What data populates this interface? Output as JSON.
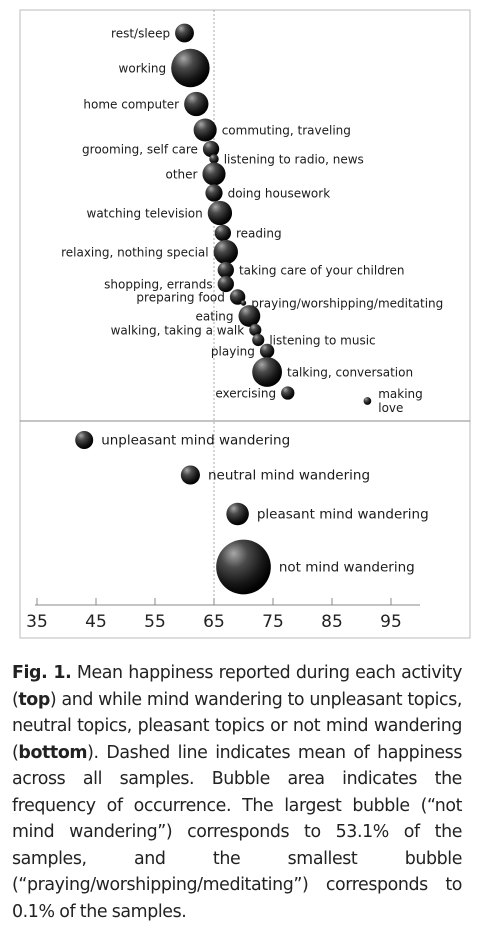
{
  "chart_data": {
    "type": "scatter",
    "subtype": "bubble",
    "xlim": [
      33,
      100
    ],
    "xticks": [
      35,
      45,
      55,
      65,
      75,
      85,
      95
    ],
    "mean_line_x": 65,
    "mean_line_style": "dashed",
    "grid": false,
    "panels": [
      {
        "name": "top",
        "points": [
          {
            "label": "rest/sleep",
            "x": 60,
            "size": 1.2,
            "label_side": "left"
          },
          {
            "label": "working",
            "x": 61,
            "size": 5.0,
            "label_side": "left"
          },
          {
            "label": "home computer",
            "x": 62,
            "size": 2.0,
            "label_side": "left"
          },
          {
            "label": "commuting, traveling",
            "x": 63.5,
            "size": 1.8,
            "label_side": "right"
          },
          {
            "label": "grooming, self care",
            "x": 64.5,
            "size": 0.9,
            "label_side": "left"
          },
          {
            "label": "listening to radio, news",
            "x": 65,
            "size": 0.3,
            "label_side": "right"
          },
          {
            "label": "other",
            "x": 65,
            "size": 1.8,
            "label_side": "left"
          },
          {
            "label": "doing housework",
            "x": 65,
            "size": 1.0,
            "label_side": "right"
          },
          {
            "label": "watching television",
            "x": 66,
            "size": 2.0,
            "label_side": "left"
          },
          {
            "label": "reading",
            "x": 66.5,
            "size": 0.9,
            "label_side": "right"
          },
          {
            "label": "relaxing, nothing special",
            "x": 67,
            "size": 2.0,
            "label_side": "left"
          },
          {
            "label": "taking care of your children",
            "x": 67,
            "size": 0.9,
            "label_side": "right"
          },
          {
            "label": "shopping, errands",
            "x": 67,
            "size": 0.9,
            "label_side": "left"
          },
          {
            "label": "preparing food",
            "x": 69,
            "size": 0.8,
            "label_side": "left"
          },
          {
            "label": "praying/worshipping/meditating",
            "x": 70,
            "size": 0.1,
            "label_side": "right"
          },
          {
            "label": "eating",
            "x": 71,
            "size": 1.6,
            "label_side": "left"
          },
          {
            "label": "walking, taking a walk",
            "x": 72,
            "size": 0.5,
            "label_side": "left"
          },
          {
            "label": "listening to music",
            "x": 72.5,
            "size": 0.5,
            "label_side": "right"
          },
          {
            "label": "playing",
            "x": 74,
            "size": 0.7,
            "label_side": "left"
          },
          {
            "label": "talking, conversation",
            "x": 74,
            "size": 3.0,
            "label_side": "right"
          },
          {
            "label": "exercising",
            "x": 77.5,
            "size": 0.6,
            "label_side": "left"
          },
          {
            "label": "making love",
            "x": 91,
            "size": 0.2,
            "label_side": "right"
          }
        ]
      },
      {
        "name": "bottom",
        "points": [
          {
            "label": "unpleasant mind wandering",
            "x": 43,
            "size": 5.0,
            "label_side": "right"
          },
          {
            "label": "neutral mind wandering",
            "x": 61,
            "size": 6.5,
            "label_side": "right"
          },
          {
            "label": "pleasant mind wandering",
            "x": 69,
            "size": 9.0,
            "label_side": "right"
          },
          {
            "label": "not mind wandering",
            "x": 70,
            "size": 53.1,
            "label_side": "right"
          }
        ]
      }
    ]
  },
  "caption": {
    "fig_label": "Fig. 1.",
    "text_1": " Mean happiness reported during each activity (",
    "bold_top": "top",
    "text_2": ") and while mind wandering to unpleasant topics, neutral topics, pleasant topics or not mind wandering (",
    "bold_bottom": "bottom",
    "text_3": "). Dashed line indicates mean of happiness across all samples. Bubble area indicates the frequency of occurrence. The largest bubble (“not mind wandering”) corresponds to 53.1% of the samples, and the smallest bubble (“praying/worshipping/meditating”) corresponds to 0.1% of the samples."
  },
  "colors": {
    "bubble_highlight": "#9a9a9a",
    "bubble_dark": "#0c0c0c",
    "frame": "#bbbbbb",
    "mean_line": "#aaaaaa"
  }
}
